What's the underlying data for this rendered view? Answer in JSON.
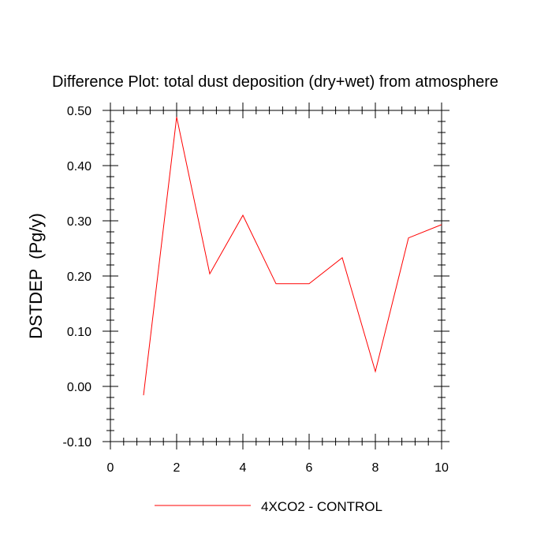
{
  "chart_data": {
    "type": "line",
    "title": "Difference Plot: total dust deposition (dry+wet) from atmosphere",
    "xlabel": "",
    "ylabel": "DSTDEP  (Pg/y)",
    "xlim": [
      0,
      10
    ],
    "ylim": [
      -0.1,
      0.5
    ],
    "x_ticks": [
      0,
      2,
      4,
      6,
      8,
      10
    ],
    "x_tick_labels": [
      "0",
      "2",
      "4",
      "6",
      "8",
      "10"
    ],
    "y_ticks": [
      -0.1,
      0.0,
      0.1,
      0.2,
      0.3,
      0.4,
      0.5
    ],
    "y_tick_labels": [
      "-0.10",
      "0.00",
      "0.10",
      "0.20",
      "0.30",
      "0.40",
      "0.50"
    ],
    "grid": false,
    "legend_position": "bottom",
    "series": [
      {
        "name": "4XCO2 - CONTROL",
        "color": "#ff0000",
        "x": [
          1,
          2,
          3,
          4,
          5,
          6,
          7,
          8,
          9,
          10
        ],
        "values": [
          -0.016,
          0.488,
          0.204,
          0.31,
          0.186,
          0.186,
          0.233,
          0.027,
          0.269,
          0.293
        ]
      }
    ]
  }
}
